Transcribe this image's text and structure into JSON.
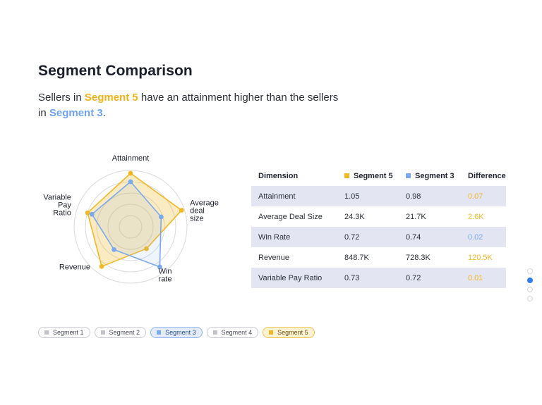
{
  "header": {
    "title": "Segment Comparison",
    "subtitle": {
      "pre": "Sellers in ",
      "seg_a": "Segment 5",
      "mid": " have an attainment higher than the sellers in ",
      "seg_b": "Segment 3",
      "post": "."
    }
  },
  "colors": {
    "segment_5": "#f2b824",
    "segment_3": "#7aa9f0",
    "grid": "#dadada",
    "inactive": "#c2c2c8"
  },
  "chart_data": {
    "type": "radar",
    "axes": [
      {
        "lines": [
          "Attainment"
        ]
      },
      {
        "lines": [
          "Average",
          "deal",
          "size"
        ]
      },
      {
        "lines": [
          "Win",
          "rate"
        ]
      },
      {
        "lines": [
          "Revenue"
        ]
      },
      {
        "lines": [
          "Variable",
          "Pay",
          "Ratio"
        ]
      }
    ],
    "rlim": [
      0,
      1
    ],
    "rings": 5,
    "series": [
      {
        "name": "Segment 5",
        "color": "#f2b824",
        "values": [
          0.95,
          0.95,
          0.48,
          0.87,
          0.8
        ]
      },
      {
        "name": "Segment 3",
        "color": "#7aa9f0",
        "values": [
          0.8,
          0.57,
          0.88,
          0.5,
          0.72
        ]
      }
    ]
  },
  "table": {
    "headers": {
      "dimension": "Dimension",
      "seg5": "Segment 5",
      "seg3": "Segment 3",
      "difference": "Difference"
    },
    "rows": [
      {
        "dimension": "Attainment",
        "seg5": "1.05",
        "seg3": "0.98",
        "difference": "0.07",
        "winner": "seg5"
      },
      {
        "dimension": "Average Deal Size",
        "seg5": "24.3K",
        "seg3": "21.7K",
        "difference": "2.6K",
        "winner": "seg5"
      },
      {
        "dimension": "Win Rate",
        "seg5": "0.72",
        "seg3": "0.74",
        "difference": "0.02",
        "winner": "seg3"
      },
      {
        "dimension": "Revenue",
        "seg5": "848.7K",
        "seg3": "728.3K",
        "difference": "120.5K",
        "winner": "seg5"
      },
      {
        "dimension": "Variable Pay Ratio",
        "seg5": "0.73",
        "seg3": "0.72",
        "difference": "0.01",
        "winner": "seg5"
      }
    ]
  },
  "legend": [
    {
      "label": "Segment 1",
      "state": "off"
    },
    {
      "label": "Segment 2",
      "state": "off"
    },
    {
      "label": "Segment 3",
      "state": "s3"
    },
    {
      "label": "Segment 4",
      "state": "off"
    },
    {
      "label": "Segment 5",
      "state": "s5"
    }
  ],
  "pagination": {
    "pages": 4,
    "active": 2
  }
}
